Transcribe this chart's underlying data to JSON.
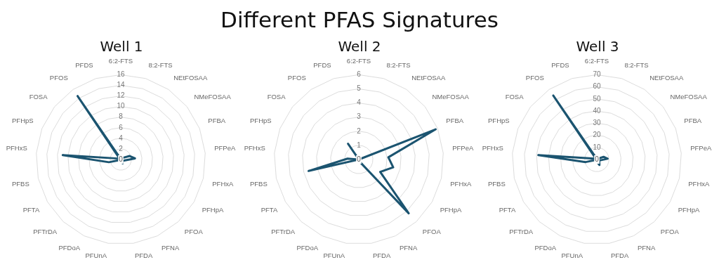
{
  "chart_data": [
    {
      "type": "radar",
      "title": "Well 1",
      "annotations": [
        "Different PFAS Signatures"
      ],
      "categories": [
        "6:2-FTS",
        "8:2-FTS",
        "NEtFOSAA",
        "NMeFOSAA",
        "PFBA",
        "PFPeA",
        "PFHxA",
        "PFHpA",
        "PFOA",
        "PFNA",
        "PFDA",
        "PFUnA",
        "PFDoA",
        "PFTrDA",
        "PFTA",
        "PFBS",
        "PFHxS",
        "PFHpS",
        "FOSA",
        "PFOS",
        "PFDS"
      ],
      "series": [
        {
          "color": "#1b5470",
          "values": [
            0.3,
            0.2,
            0.2,
            0.5,
            1.8,
            2.7,
            0.8,
            0.5,
            0.5,
            0.8,
            0.3,
            0.2,
            0.2,
            0.2,
            0.2,
            2.3,
            11,
            0.5,
            0.3,
            14.5,
            0.2
          ]
        }
      ],
      "ylim": [
        0,
        16
      ],
      "yticks": [
        0,
        2,
        4,
        6,
        8,
        10,
        12,
        14,
        16
      ],
      "grid": true,
      "legend": false,
      "marker": "none"
    },
    {
      "type": "radar",
      "title": "Well 2",
      "categories": [
        "6:2-FTS",
        "8:2-FTS",
        "NEtFOSAA",
        "NMeFOSAA",
        "PFBA",
        "PFPeA",
        "PFHxA",
        "PFHpA",
        "PFOA",
        "PFNA",
        "PFDA",
        "PFUnA",
        "PFDoA",
        "PFTrDA",
        "PFTA",
        "PFBS",
        "PFHxS",
        "PFHpS",
        "FOSA",
        "PFOS",
        "PFDS"
      ],
      "series": [
        {
          "color": "#1b5470",
          "values": [
            0,
            0,
            0,
            0,
            5.85,
            2.1,
            2.5,
            1.75,
            5.2,
            0.2,
            0,
            0,
            0,
            0,
            0,
            3.65,
            0.8,
            0,
            0,
            1.35,
            0
          ]
        }
      ],
      "ylim": [
        0,
        6
      ],
      "yticks": [
        0,
        1,
        2,
        3,
        4,
        5,
        6
      ],
      "grid": true,
      "legend": false,
      "marker": "none"
    },
    {
      "type": "radar",
      "title": "Well 3",
      "categories": [
        "6:2-FTS",
        "8:2-FTS",
        "NEtFOSAA",
        "NMeFOSAA",
        "PFBA",
        "PFPeA",
        "PFHxA",
        "PFHpA",
        "PFOA",
        "PFNA",
        "PFDA",
        "PFUnA",
        "PFDoA",
        "PFTrDA",
        "PFTA",
        "PFBS",
        "PFHxS",
        "PFHpS",
        "FOSA",
        "PFOS",
        "PFDS"
      ],
      "series": [
        {
          "color": "#1b5470",
          "values": [
            1,
            0.5,
            0.5,
            1,
            6,
            9,
            3,
            2,
            3,
            5,
            2,
            1,
            0.5,
            0.5,
            0.5,
            9.5,
            48.5,
            2,
            1,
            64,
            1
          ]
        }
      ],
      "ylim": [
        0,
        70
      ],
      "yticks": [
        0,
        10,
        20,
        30,
        40,
        50,
        60,
        70
      ],
      "grid": true,
      "legend": false,
      "marker": "none"
    }
  ]
}
